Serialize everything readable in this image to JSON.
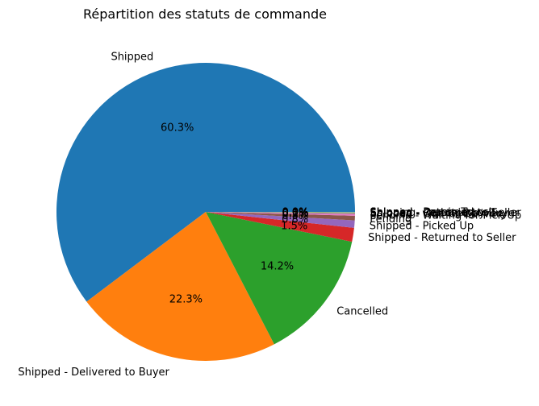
{
  "chart_data": {
    "type": "pie",
    "title": "Répartition des statuts de commande",
    "slices": [
      {
        "label": "Shipped",
        "value": 60.3,
        "pct_label": "60.3%",
        "color": "#1f77b4"
      },
      {
        "label": "Shipped - Delivered to Buyer",
        "value": 22.3,
        "pct_label": "22.3%",
        "color": "#ff7f0e"
      },
      {
        "label": "Cancelled",
        "value": 14.2,
        "pct_label": "14.2%",
        "color": "#2ca02c"
      },
      {
        "label": "Shipped - Returned to Seller",
        "value": 1.5,
        "pct_label": "1.5%",
        "color": "#d62728"
      },
      {
        "label": "Shipped - Picked Up",
        "value": 0.8,
        "pct_label": "0.8%",
        "color": "#9467bd"
      },
      {
        "label": "Pending",
        "value": 0.5,
        "pct_label": "0.5%",
        "color": "#8c564b"
      },
      {
        "label": "Pending - Waiting for Pick Up",
        "value": 0.2,
        "pct_label": "0.2%",
        "color": "#e377c2"
      },
      {
        "label": "Shipped - Out for Delivery",
        "value": 0.1,
        "pct_label": "0.1%",
        "color": "#7f7f7f"
      },
      {
        "label": "Shipped - Rejected by Buyer",
        "value": 0.05,
        "pct_label": "0.0%",
        "color": "#bcbd22"
      },
      {
        "label": "Shipping",
        "value": 0.03,
        "pct_label": "0.0%",
        "color": "#17becf"
      },
      {
        "label": "Shipped - Returning to Seller",
        "value": 0.02,
        "pct_label": "0.0%",
        "color": "#1f77b4"
      },
      {
        "label": "Shipped - Lost in Transit",
        "value": 0.01,
        "pct_label": "0.0%",
        "color": "#ff7f0e"
      },
      {
        "label": "Shipped - Damaged",
        "value": 0.005,
        "pct_label": "0.0%",
        "color": "#2ca02c"
      }
    ],
    "start_angle": "0 degrees (counter-clockwise)",
    "legend": "none"
  }
}
